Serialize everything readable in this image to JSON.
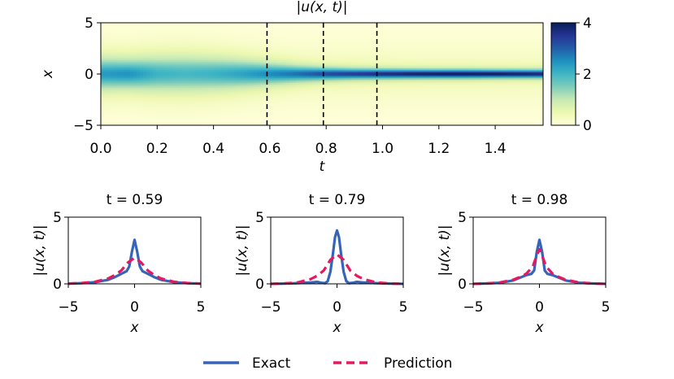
{
  "chart_data": [
    {
      "type": "heatmap",
      "title": "|u(x, t)|",
      "xlabel": "t",
      "ylabel": "x",
      "xlim": [
        0.0,
        1.57
      ],
      "ylim": [
        -5,
        5
      ],
      "xticks": [
        "0.0",
        "0.2",
        "0.4",
        "0.6",
        "0.8",
        "1.0",
        "1.2",
        "1.4"
      ],
      "xtick_values": [
        0.0,
        0.2,
        0.4,
        0.6,
        0.8,
        1.0,
        1.2,
        1.4
      ],
      "yticks": [
        "5",
        "0",
        "−5"
      ],
      "ytick_values": [
        5,
        0,
        -5
      ],
      "marker_lines_t": [
        0.59,
        0.79,
        0.98
      ],
      "colorbar": {
        "range": [
          0,
          4
        ],
        "ticks": [
          "4",
          "2",
          "0"
        ],
        "tick_values": [
          4,
          2,
          0
        ]
      },
      "profile": {
        "t": [
          0.0,
          0.1,
          0.2,
          0.3,
          0.4,
          0.5,
          0.6,
          0.7,
          0.8,
          0.9,
          1.0,
          1.1,
          1.2,
          1.3,
          1.4,
          1.5,
          1.57
        ],
        "peak_amplitude": [
          2.0,
          2.1,
          1.7,
          1.6,
          1.7,
          1.9,
          2.2,
          2.5,
          2.9,
          3.1,
          3.3,
          3.5,
          3.6,
          3.6,
          3.6,
          3.5,
          3.4
        ],
        "width": [
          0.9,
          0.85,
          1.0,
          1.05,
          0.95,
          0.8,
          0.6,
          0.45,
          0.35,
          0.3,
          0.28,
          0.26,
          0.25,
          0.25,
          0.24,
          0.24,
          0.24
        ]
      }
    },
    {
      "type": "line",
      "title": "t = 0.59",
      "xlabel": "x",
      "ylabel": "|u(x, t)|",
      "xlim": [
        -5,
        5
      ],
      "ylim": [
        0,
        5
      ],
      "xticks": [
        "−5",
        "0",
        "5"
      ],
      "xtick_values": [
        -5,
        0,
        5
      ],
      "yticks": [
        "5",
        "0"
      ],
      "ytick_values": [
        5,
        0
      ],
      "series": [
        {
          "name": "Exact",
          "color": "#3564b9",
          "style": "solid",
          "x": [
            -5,
            -4,
            -3,
            -2,
            -1.5,
            -1,
            -0.6,
            -0.4,
            -0.2,
            0,
            0.2,
            0.4,
            0.6,
            1,
            1.5,
            2,
            3,
            4,
            5
          ],
          "values": [
            0.02,
            0.05,
            0.12,
            0.3,
            0.5,
            0.75,
            0.95,
            1.3,
            2.4,
            3.3,
            2.4,
            1.3,
            0.95,
            0.75,
            0.5,
            0.3,
            0.12,
            0.05,
            0.02
          ]
        },
        {
          "name": "Prediction",
          "color": "#e6185f",
          "style": "dashed",
          "x": [
            -5,
            -4,
            -3,
            -2,
            -1.5,
            -1,
            -0.5,
            0,
            0.5,
            1,
            1.5,
            2,
            3,
            4,
            5
          ],
          "values": [
            0.02,
            0.06,
            0.15,
            0.4,
            0.65,
            1.0,
            1.6,
            1.95,
            1.6,
            1.0,
            0.65,
            0.4,
            0.15,
            0.06,
            0.02
          ]
        }
      ]
    },
    {
      "type": "line",
      "title": "t = 0.79",
      "xlabel": "x",
      "ylabel": "|u(x, t)|",
      "xlim": [
        -5,
        5
      ],
      "ylim": [
        0,
        5
      ],
      "xticks": [
        "−5",
        "0",
        "5"
      ],
      "xtick_values": [
        -5,
        0,
        5
      ],
      "yticks": [
        "5",
        "0"
      ],
      "ytick_values": [
        5,
        0
      ],
      "series": [
        {
          "name": "Exact",
          "color": "#3564b9",
          "style": "solid",
          "x": [
            -5,
            -4,
            -3,
            -2,
            -1.5,
            -1.2,
            -0.9,
            -0.7,
            -0.5,
            -0.3,
            -0.15,
            0,
            0.15,
            0.3,
            0.5,
            0.7,
            0.9,
            1.2,
            1.5,
            2,
            3,
            4,
            5
          ],
          "values": [
            0.0,
            0.02,
            0.05,
            0.1,
            0.15,
            0.08,
            0.05,
            0.2,
            0.9,
            2.3,
            3.5,
            4.0,
            3.5,
            2.3,
            0.9,
            0.2,
            0.05,
            0.08,
            0.15,
            0.1,
            0.05,
            0.02,
            0.0
          ]
        },
        {
          "name": "Prediction",
          "color": "#e6185f",
          "style": "dashed",
          "x": [
            -5,
            -4,
            -3,
            -2,
            -1.5,
            -1,
            -0.5,
            0,
            0.5,
            1,
            1.5,
            2,
            3,
            4,
            5
          ],
          "values": [
            0.0,
            0.03,
            0.1,
            0.35,
            0.6,
            1.0,
            1.8,
            2.2,
            1.8,
            1.0,
            0.6,
            0.35,
            0.1,
            0.03,
            0.0
          ]
        }
      ]
    },
    {
      "type": "line",
      "title": "t = 0.98",
      "xlabel": "x",
      "ylabel": "|u(x, t)|",
      "xlim": [
        -5,
        5
      ],
      "ylim": [
        0,
        5
      ],
      "xticks": [
        "−5",
        "0",
        "5"
      ],
      "xtick_values": [
        -5,
        0,
        5
      ],
      "yticks": [
        "5",
        "0"
      ],
      "ytick_values": [
        5,
        0
      ],
      "series": [
        {
          "name": "Exact",
          "color": "#3564b9",
          "style": "solid",
          "x": [
            -5,
            -4,
            -3,
            -2,
            -1.5,
            -1,
            -0.6,
            -0.4,
            -0.2,
            0,
            0.2,
            0.4,
            0.6,
            1,
            1.5,
            2,
            3,
            4,
            5
          ],
          "values": [
            0.0,
            0.03,
            0.08,
            0.25,
            0.45,
            0.65,
            0.75,
            1.0,
            2.4,
            3.3,
            2.4,
            1.0,
            0.75,
            0.65,
            0.45,
            0.25,
            0.08,
            0.03,
            0.0
          ]
        },
        {
          "name": "Prediction",
          "color": "#e6185f",
          "style": "dashed",
          "x": [
            -5,
            -4,
            -3,
            -2,
            -1.5,
            -1,
            -0.5,
            -0.25,
            0,
            0.25,
            0.5,
            1,
            1.5,
            2,
            3,
            4,
            5
          ],
          "values": [
            0.0,
            0.03,
            0.1,
            0.3,
            0.5,
            0.75,
            1.3,
            2.0,
            2.6,
            2.0,
            1.3,
            0.75,
            0.5,
            0.3,
            0.1,
            0.03,
            0.0
          ]
        }
      ]
    }
  ],
  "legend": {
    "items": [
      {
        "label": "Exact",
        "color": "#3564b9",
        "style": "solid"
      },
      {
        "label": "Prediction",
        "color": "#e6185f",
        "style": "dashed"
      }
    ]
  }
}
